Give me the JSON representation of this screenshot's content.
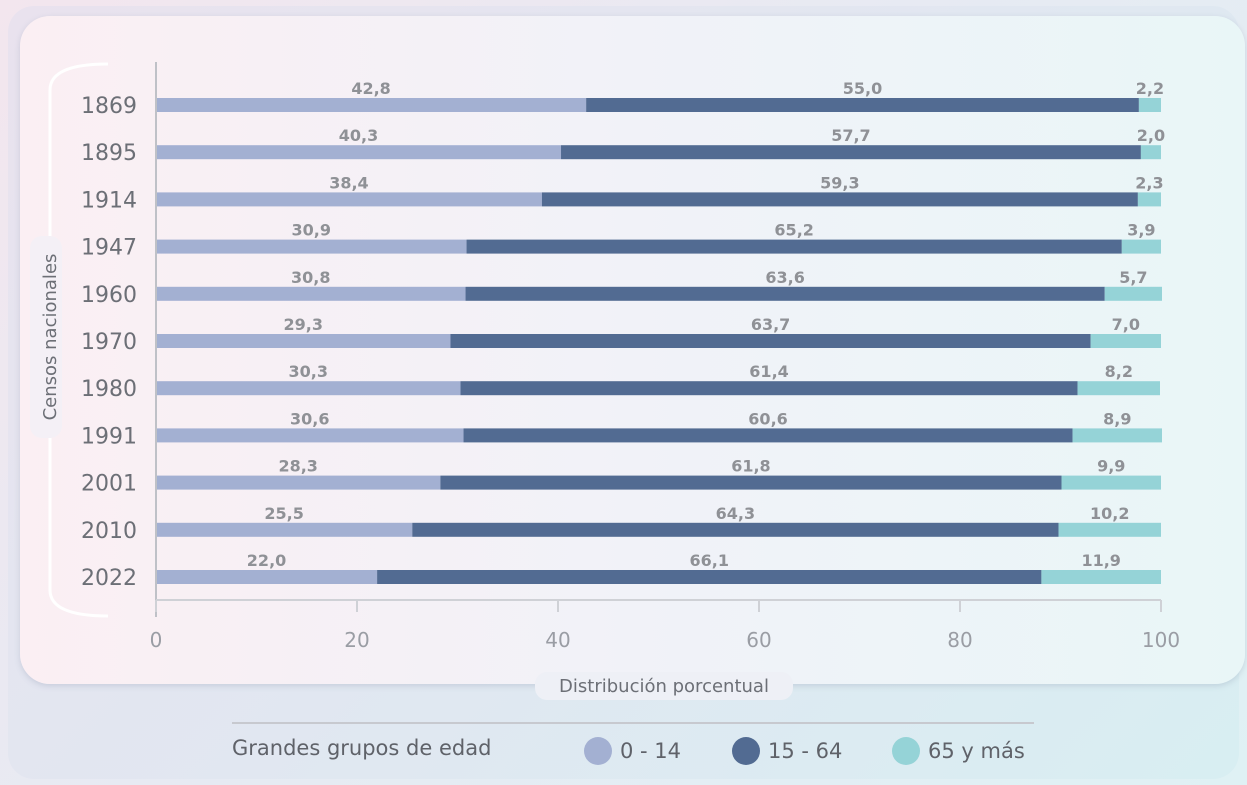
{
  "chart_data": {
    "type": "bar",
    "orientation": "horizontal",
    "stacked": true,
    "categories": [
      "1869",
      "1895",
      "1914",
      "1947",
      "1960",
      "1970",
      "1980",
      "1991",
      "2001",
      "2010",
      "2022"
    ],
    "series": [
      {
        "name": "0 - 14",
        "color": "#a3b0d2",
        "values": [
          42.8,
          40.3,
          38.4,
          30.9,
          30.8,
          29.3,
          30.3,
          30.6,
          28.3,
          25.5,
          22.0
        ]
      },
      {
        "name": "15 - 64",
        "color": "#526b92",
        "values": [
          55.0,
          57.7,
          59.3,
          65.2,
          63.6,
          63.7,
          61.4,
          60.6,
          61.8,
          64.3,
          66.1
        ]
      },
      {
        "name": "65 y más",
        "color": "#95d3d7",
        "values": [
          2.2,
          2.0,
          2.3,
          3.9,
          5.7,
          7.0,
          8.2,
          8.9,
          9.9,
          10.2,
          11.9
        ]
      }
    ],
    "data_labels": [
      [
        "42,8",
        "40,3",
        "38,4",
        "30,9",
        "30,8",
        "29,3",
        "30,3",
        "30,6",
        "28,3",
        "25,5",
        "22,0"
      ],
      [
        "55,0",
        "57,7",
        "59,3",
        "65,2",
        "63,6",
        "63,7",
        "61,4",
        "60,6",
        "61,8",
        "64,3",
        "66,1"
      ],
      [
        "2,2",
        "2,0",
        "2,3",
        "3,9",
        "5,7",
        "7,0",
        "8,2",
        "8,9",
        "9,9",
        "10,2",
        "11,9"
      ]
    ],
    "x_ticks": [
      "0",
      "20",
      "40",
      "60",
      "80",
      "100"
    ],
    "xlim": [
      0,
      100
    ],
    "xlabel": "Distribución porcentual",
    "ylabel": "Censos nacionales",
    "grid": false,
    "legend_position": "bottom",
    "legend_title": "Grandes grupos de edad"
  }
}
